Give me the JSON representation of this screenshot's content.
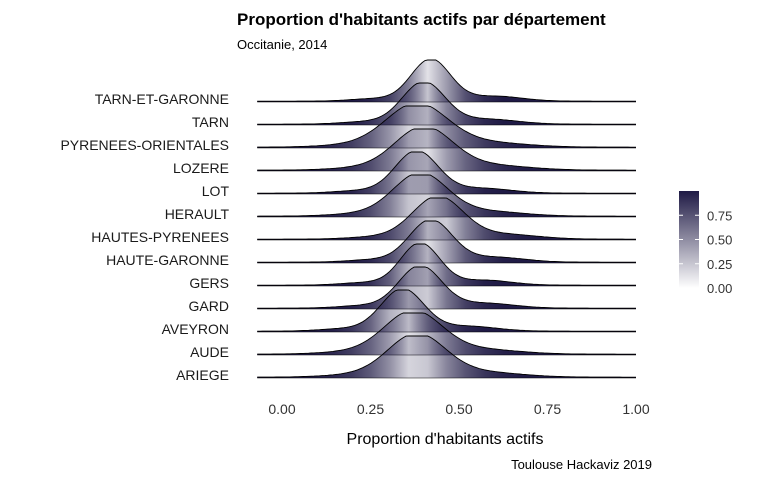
{
  "chart_data": {
    "type": "ridgeline",
    "title": "Proportion d'habitants actifs par département",
    "subtitle": "Occitanie, 2014",
    "caption": "Toulouse Hackaviz 2019",
    "xlabel": "Proportion d'habitants actifs",
    "ylabel": "",
    "xlim": [
      -0.07,
      1.0
    ],
    "x_ticks": [
      0.0,
      0.25,
      0.5,
      0.75,
      1.0
    ],
    "x_tick_labels": [
      "0.00",
      "0.25",
      "0.50",
      "0.75",
      "1.00"
    ],
    "grid": false,
    "legend": {
      "placement": "right",
      "type": "colorbar",
      "ticks": [
        0.0,
        0.25,
        0.5,
        0.75
      ],
      "tick_labels": [
        "0.00",
        "0.25",
        "0.50",
        "0.75"
      ],
      "range": [
        0,
        1
      ],
      "color_low": "#ffffff",
      "color_high": "#1f1a45"
    },
    "fill_colormap": "tail probability (0 to 1)",
    "categories": [
      "TARN-ET-GARONNE",
      "TARN",
      "PYRENEES-ORIENTALES",
      "LOZERE",
      "LOT",
      "HERAULT",
      "HAUTES-PYRENEES",
      "HAUTE-GARONNE",
      "GERS",
      "GARD",
      "AVEYRON",
      "AUDE",
      "ARIEGE"
    ],
    "series": [
      {
        "name": "TARN-ET-GARONNE",
        "peak": 0.42,
        "spread": 0.055,
        "extent": [
          -0.07,
          1.0
        ]
      },
      {
        "name": "TARN",
        "peak": 0.4,
        "spread": 0.06,
        "extent": [
          -0.07,
          1.0
        ]
      },
      {
        "name": "PYRENEES-ORIENTALES",
        "peak": 0.38,
        "spread": 0.085,
        "extent": [
          -0.07,
          1.0
        ]
      },
      {
        "name": "LOZERE",
        "peak": 0.4,
        "spread": 0.08,
        "extent": [
          -0.07,
          1.0
        ]
      },
      {
        "name": "LOT",
        "peak": 0.38,
        "spread": 0.06,
        "extent": [
          -0.07,
          1.0
        ]
      },
      {
        "name": "HERAULT",
        "peak": 0.39,
        "spread": 0.075,
        "extent": [
          -0.07,
          1.0
        ]
      },
      {
        "name": "HAUTES-PYRENEES",
        "peak": 0.44,
        "spread": 0.07,
        "extent": [
          -0.07,
          1.0
        ]
      },
      {
        "name": "HAUTE-GARONNE",
        "peak": 0.42,
        "spread": 0.06,
        "extent": [
          -0.07,
          1.0
        ]
      },
      {
        "name": "GERS",
        "peak": 0.39,
        "spread": 0.055,
        "extent": [
          -0.07,
          1.0
        ]
      },
      {
        "name": "GARD",
        "peak": 0.39,
        "spread": 0.06,
        "extent": [
          -0.07,
          1.0
        ]
      },
      {
        "name": "AVEYRON",
        "peak": 0.34,
        "spread": 0.06,
        "extent": [
          -0.07,
          1.0
        ]
      },
      {
        "name": "AUDE",
        "peak": 0.37,
        "spread": 0.08,
        "extent": [
          -0.07,
          1.0
        ]
      },
      {
        "name": "ARIEGE",
        "peak": 0.38,
        "spread": 0.08,
        "extent": [
          -0.07,
          1.0
        ]
      }
    ]
  }
}
